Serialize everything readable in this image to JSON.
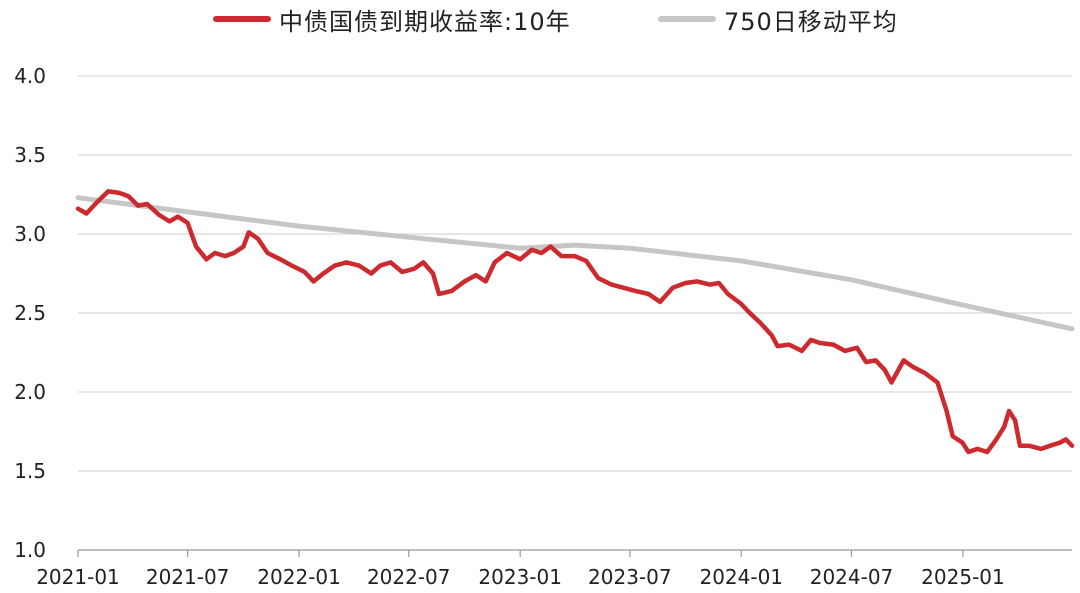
{
  "legend": {
    "series1_label": "中债国债到期收益率:10年",
    "series2_label": "750日移动平均"
  },
  "colors": {
    "series1": "#cc2a2e",
    "series2": "#c6c6c6",
    "grid": "#d6d6d6"
  },
  "chart_data": {
    "type": "line",
    "ylim": [
      1.0,
      4.0
    ],
    "yticks": [
      "1.0",
      "1.5",
      "2.0",
      "2.5",
      "3.0",
      "3.5",
      "4.0"
    ],
    "xticks": [
      "2021-01",
      "2021-07",
      "2022-01",
      "2022-07",
      "2023-01",
      "2023-07",
      "2024-01",
      "2024-07",
      "2025-01"
    ],
    "xlim": [
      "2021-01-01",
      "2025-06-30"
    ],
    "grid": true,
    "legend_position": "top",
    "series": [
      {
        "name": "中债国债到期收益率:10年",
        "points": [
          [
            "2021-01-01",
            3.16
          ],
          [
            "2021-01-15",
            3.13
          ],
          [
            "2021-02-01",
            3.2
          ],
          [
            "2021-02-20",
            3.27
          ],
          [
            "2021-03-10",
            3.26
          ],
          [
            "2021-03-25",
            3.24
          ],
          [
            "2021-04-10",
            3.18
          ],
          [
            "2021-04-25",
            3.19
          ],
          [
            "2021-05-15",
            3.12
          ],
          [
            "2021-06-01",
            3.08
          ],
          [
            "2021-06-15",
            3.11
          ],
          [
            "2021-07-01",
            3.07
          ],
          [
            "2021-07-15",
            2.92
          ],
          [
            "2021-08-01",
            2.84
          ],
          [
            "2021-08-15",
            2.88
          ],
          [
            "2021-09-01",
            2.86
          ],
          [
            "2021-09-15",
            2.88
          ],
          [
            "2021-10-01",
            2.92
          ],
          [
            "2021-10-10",
            3.01
          ],
          [
            "2021-10-25",
            2.97
          ],
          [
            "2021-11-10",
            2.88
          ],
          [
            "2021-12-01",
            2.84
          ],
          [
            "2021-12-20",
            2.8
          ],
          [
            "2022-01-10",
            2.76
          ],
          [
            "2022-01-25",
            2.7
          ],
          [
            "2022-02-10",
            2.75
          ],
          [
            "2022-03-01",
            2.8
          ],
          [
            "2022-03-20",
            2.82
          ],
          [
            "2022-04-10",
            2.8
          ],
          [
            "2022-04-30",
            2.75
          ],
          [
            "2022-05-15",
            2.8
          ],
          [
            "2022-06-01",
            2.82
          ],
          [
            "2022-06-20",
            2.76
          ],
          [
            "2022-07-10",
            2.78
          ],
          [
            "2022-07-25",
            2.82
          ],
          [
            "2022-08-10",
            2.75
          ],
          [
            "2022-08-20",
            2.62
          ],
          [
            "2022-09-10",
            2.64
          ],
          [
            "2022-10-01",
            2.7
          ],
          [
            "2022-10-20",
            2.74
          ],
          [
            "2022-11-05",
            2.7
          ],
          [
            "2022-11-20",
            2.82
          ],
          [
            "2022-12-10",
            2.88
          ],
          [
            "2023-01-01",
            2.84
          ],
          [
            "2023-01-20",
            2.9
          ],
          [
            "2023-02-05",
            2.88
          ],
          [
            "2023-02-20",
            2.92
          ],
          [
            "2023-03-10",
            2.86
          ],
          [
            "2023-04-01",
            2.86
          ],
          [
            "2023-04-20",
            2.83
          ],
          [
            "2023-05-10",
            2.72
          ],
          [
            "2023-06-01",
            2.68
          ],
          [
            "2023-06-20",
            2.66
          ],
          [
            "2023-07-10",
            2.64
          ],
          [
            "2023-08-01",
            2.62
          ],
          [
            "2023-08-20",
            2.57
          ],
          [
            "2023-09-10",
            2.66
          ],
          [
            "2023-10-01",
            2.69
          ],
          [
            "2023-10-20",
            2.7
          ],
          [
            "2023-11-10",
            2.68
          ],
          [
            "2023-11-25",
            2.69
          ],
          [
            "2023-12-10",
            2.62
          ],
          [
            "2023-12-31",
            2.56
          ],
          [
            "2024-01-15",
            2.5
          ],
          [
            "2024-02-01",
            2.44
          ],
          [
            "2024-02-20",
            2.36
          ],
          [
            "2024-03-01",
            2.29
          ],
          [
            "2024-03-20",
            2.3
          ],
          [
            "2024-04-10",
            2.26
          ],
          [
            "2024-04-25",
            2.33
          ],
          [
            "2024-05-10",
            2.31
          ],
          [
            "2024-06-01",
            2.3
          ],
          [
            "2024-06-20",
            2.26
          ],
          [
            "2024-07-10",
            2.28
          ],
          [
            "2024-07-25",
            2.19
          ],
          [
            "2024-08-10",
            2.2
          ],
          [
            "2024-08-25",
            2.14
          ],
          [
            "2024-09-05",
            2.06
          ],
          [
            "2024-09-25",
            2.2
          ],
          [
            "2024-10-10",
            2.16
          ],
          [
            "2024-10-30",
            2.12
          ],
          [
            "2024-11-20",
            2.06
          ],
          [
            "2024-12-05",
            1.88
          ],
          [
            "2024-12-15",
            1.72
          ],
          [
            "2024-12-31",
            1.68
          ],
          [
            "2025-01-10",
            1.62
          ],
          [
            "2025-01-25",
            1.64
          ],
          [
            "2025-02-10",
            1.62
          ],
          [
            "2025-02-25",
            1.7
          ],
          [
            "2025-03-10",
            1.78
          ],
          [
            "2025-03-18",
            1.88
          ],
          [
            "2025-03-28",
            1.82
          ],
          [
            "2025-04-05",
            1.66
          ],
          [
            "2025-04-20",
            1.66
          ],
          [
            "2025-05-10",
            1.64
          ],
          [
            "2025-05-25",
            1.66
          ],
          [
            "2025-06-10",
            1.68
          ],
          [
            "2025-06-20",
            1.7
          ],
          [
            "2025-06-30",
            1.66
          ]
        ]
      },
      {
        "name": "750日移动平均",
        "points": [
          [
            "2021-01-01",
            3.23
          ],
          [
            "2021-07-01",
            3.14
          ],
          [
            "2022-01-01",
            3.05
          ],
          [
            "2022-07-01",
            2.98
          ],
          [
            "2023-01-01",
            2.91
          ],
          [
            "2023-04-01",
            2.93
          ],
          [
            "2023-07-01",
            2.91
          ],
          [
            "2024-01-01",
            2.83
          ],
          [
            "2024-07-01",
            2.71
          ],
          [
            "2025-01-01",
            2.55
          ],
          [
            "2025-06-30",
            2.4
          ]
        ]
      }
    ]
  }
}
